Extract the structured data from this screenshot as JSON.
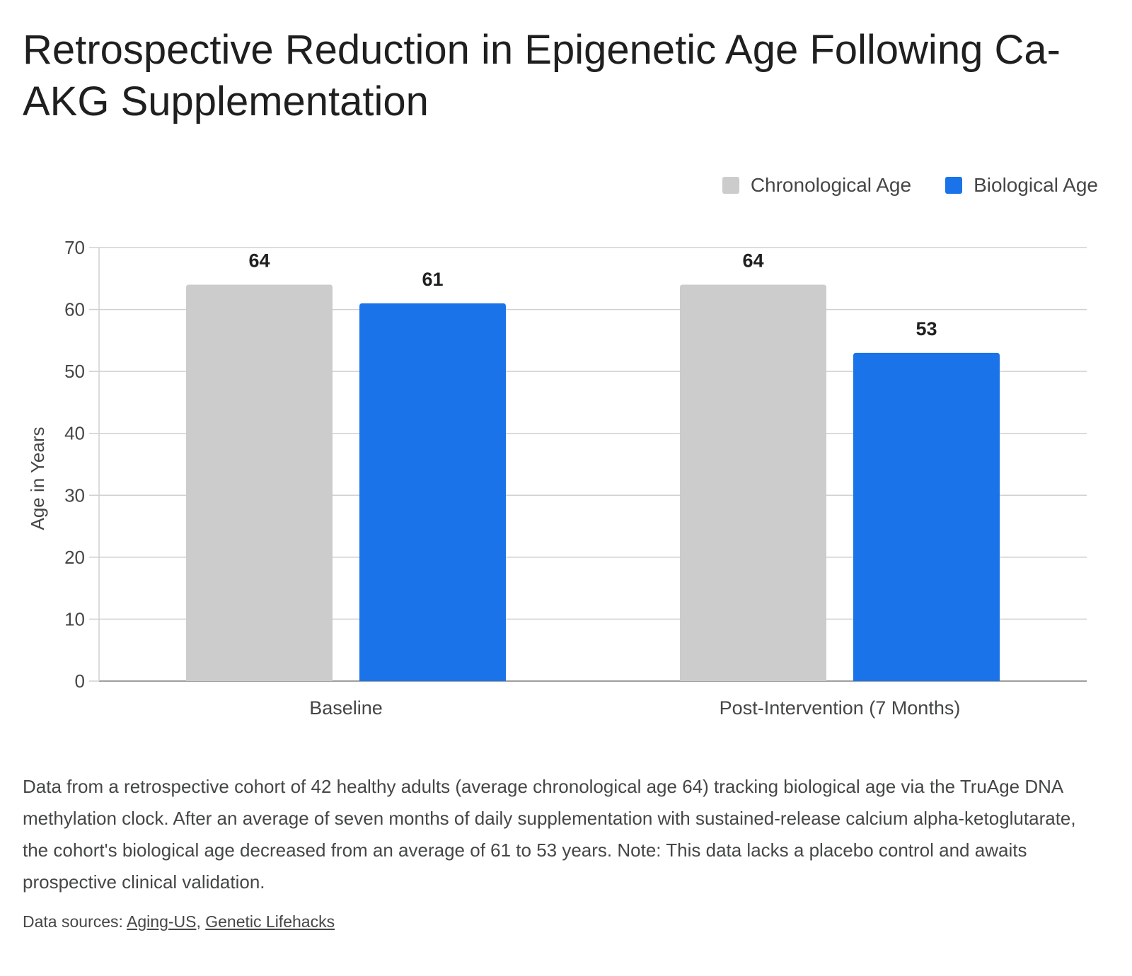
{
  "title": "Retrospective Reduction in Epigenetic Age Following Ca-AKG Supplementation",
  "caption": "Data from a retrospective cohort of 42 healthy adults (average chronological age 64) tracking biological age via the TruAge DNA methylation clock. After an average of seven months of daily supplementation with sustained-release calcium alpha-ketoglutarate, the cohort's biological age decreased from an average of 61 to 53 years. Note: This data lacks a placebo control and awaits prospective clinical validation.",
  "sources": {
    "label": "Data sources:",
    "links": [
      "Aging-US",
      "Genetic Lifehacks"
    ]
  },
  "chart_data": {
    "type": "bar",
    "categories": [
      "Baseline",
      "Post-Intervention (7 Months)"
    ],
    "series": [
      {
        "name": "Chronological Age",
        "values": [
          64,
          64
        ],
        "color": "#cccccc"
      },
      {
        "name": "Biological Age",
        "values": [
          61,
          53
        ],
        "color": "#1a73e8"
      }
    ],
    "ylabel": "Age in Years",
    "ylim": [
      0,
      70
    ],
    "yticks": [
      0,
      10,
      20,
      30,
      40,
      50,
      60,
      70
    ],
    "grid": true,
    "legend": "top-right",
    "data_labels": true
  }
}
